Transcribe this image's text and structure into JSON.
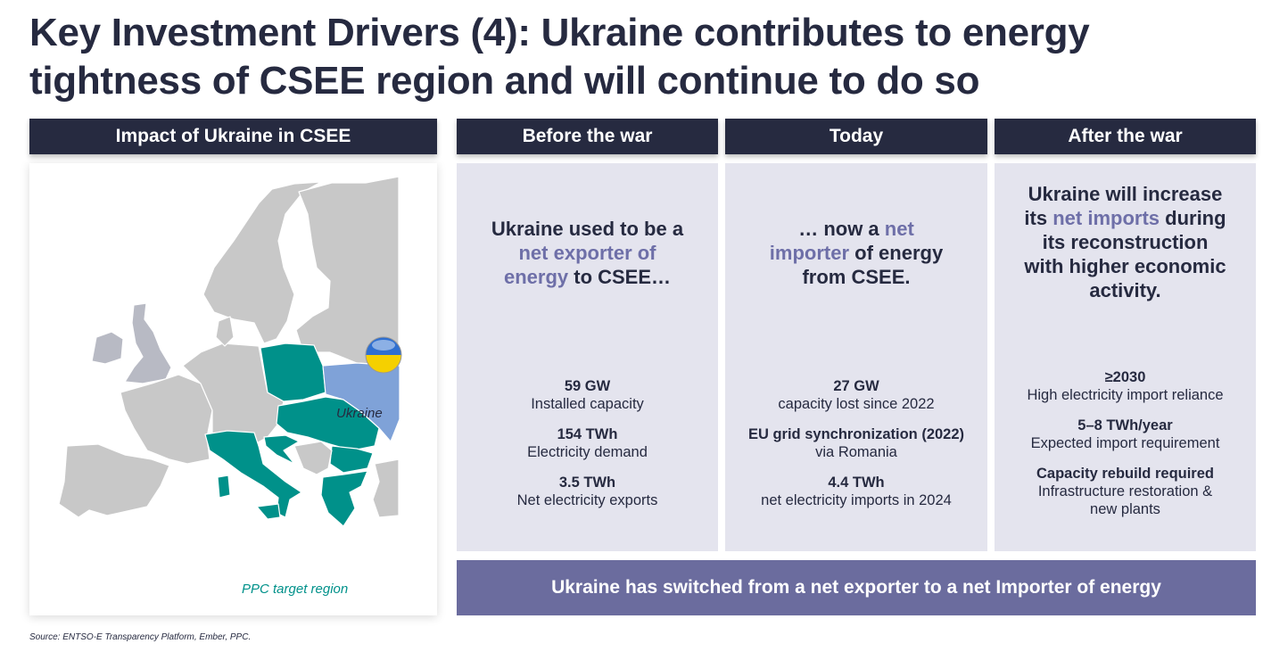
{
  "title": "Key Investment Drivers (4): Ukraine contributes to energy tightness of CSEE region and will continue to do so",
  "map_panel": {
    "header": "Impact of Ukraine in CSEE",
    "ukraine_label": "Ukraine",
    "legend_label": "PPC target region",
    "colors": {
      "target": "#00918a",
      "ukraine": "#7fa2d8",
      "other": "#c8c8c8"
    }
  },
  "columns": [
    {
      "header": "Before the war",
      "headline": [
        {
          "t": "Ukraine used to be a "
        },
        {
          "t": "net exporter of energy",
          "hl": true
        },
        {
          "t": " to CSEE…"
        }
      ],
      "facts": [
        {
          "value": "59 GW",
          "label": "Installed capacity"
        },
        {
          "value": "154 TWh",
          "label": "Electricity demand"
        },
        {
          "value": "3.5 TWh",
          "label": "Net electricity exports"
        }
      ]
    },
    {
      "header": "Today",
      "headline": [
        {
          "t": "… now a "
        },
        {
          "t": "net importer",
          "hl": true
        },
        {
          "t": " of energy from CSEE."
        }
      ],
      "facts": [
        {
          "value": "27 GW",
          "label": "capacity lost since 2022"
        },
        {
          "value": "EU grid synchronization (2022)",
          "label": "via Romania"
        },
        {
          "value": "4.4 TWh",
          "label": "net electricity imports in 2024"
        }
      ]
    },
    {
      "header": "After the war",
      "headline": [
        {
          "t": "Ukraine will increase its "
        },
        {
          "t": "net imports",
          "hl": true
        },
        {
          "t": " during its reconstruction with higher economic activity."
        }
      ],
      "facts": [
        {
          "value": "≥2030",
          "label": "High electricity import reliance"
        },
        {
          "value": "5–8 TWh/year",
          "label": "Expected import requirement"
        },
        {
          "value": "Capacity rebuild required",
          "label": "Infrastructure restoration & new plants"
        }
      ]
    }
  ],
  "banner": "Ukraine has switched from a net exporter to a net Importer of energy",
  "source": "Source: ENTSO-E Transparency Platform, Ember, PPC.",
  "colors": {
    "navy": "#262a40",
    "accent": "#6e6fa8",
    "panel": "#e4e4ee",
    "banner": "#6b6c9e"
  }
}
